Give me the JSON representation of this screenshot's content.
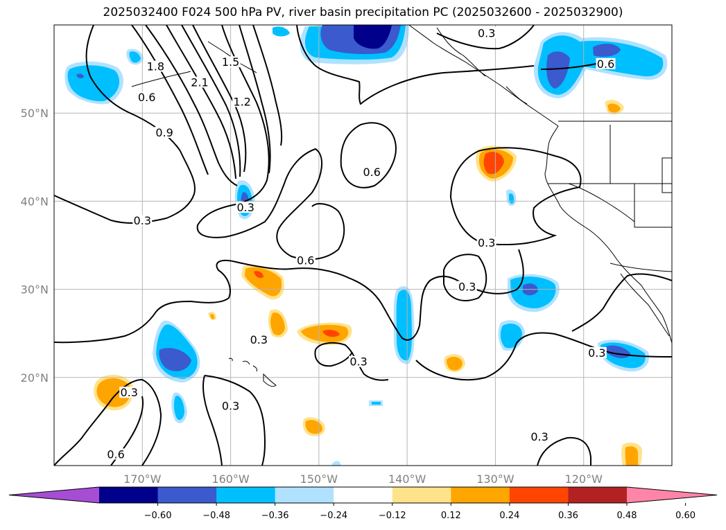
{
  "title": "2025032400 F024 500 hPa PV, river basin precipitation PC (2025032600 - 2025032900)",
  "map": {
    "projection": "lat-lon",
    "extent": {
      "lon_min": -180,
      "lon_max": -110,
      "lat_min": 10,
      "lat_max": 60
    },
    "gridlines": true,
    "lat_labels": [
      {
        "lat": 50,
        "text": "50°N"
      },
      {
        "lat": 40,
        "text": "40°N"
      },
      {
        "lat": 30,
        "text": "30°N"
      },
      {
        "lat": 20,
        "text": "20°N"
      }
    ],
    "lon_labels": [
      {
        "lon": -170,
        "text": "170°W"
      },
      {
        "lon": -160,
        "text": "160°W"
      },
      {
        "lon": -150,
        "text": "150°W"
      },
      {
        "lon": -140,
        "text": "140°W"
      },
      {
        "lon": -130,
        "text": "130°W"
      },
      {
        "lon": -120,
        "text": "120°W"
      }
    ],
    "contour_labels": [
      {
        "text": "0.3",
        "lon": -170,
        "lat": 37.5
      },
      {
        "text": "0.6",
        "lon": -151.5,
        "lat": 33.0
      },
      {
        "text": "0.6",
        "lon": -144.0,
        "lat": 43.0
      },
      {
        "text": "0.3",
        "lon": -131.0,
        "lat": 35.0
      },
      {
        "text": "0.3",
        "lon": -133.2,
        "lat": 30.0
      },
      {
        "text": "0.3",
        "lon": -118.5,
        "lat": 22.5
      },
      {
        "text": "0.3",
        "lon": -171.5,
        "lat": 18.0
      },
      {
        "text": "0.6",
        "lon": -173.0,
        "lat": 11.0
      },
      {
        "text": "0.3",
        "lon": -156.8,
        "lat": 24.0
      },
      {
        "text": "0.3",
        "lon": -160.0,
        "lat": 16.5
      },
      {
        "text": "0.3",
        "lon": -145.5,
        "lat": 21.5
      },
      {
        "text": "0.3",
        "lon": -125.0,
        "lat": 13.0
      },
      {
        "text": "0.3",
        "lon": -131.0,
        "lat": 58.8
      },
      {
        "text": "0.6",
        "lon": -117.5,
        "lat": 55.3
      },
      {
        "text": "0.3",
        "lon": -158.3,
        "lat": 39.0
      },
      {
        "text": "0.6",
        "lon": -169.5,
        "lat": 51.5
      },
      {
        "text": "0.9",
        "lon": -167.5,
        "lat": 47.5
      },
      {
        "text": "1.2",
        "lon": -158.7,
        "lat": 51.0
      },
      {
        "text": "2.1",
        "lon": -163.5,
        "lat": 53.2
      },
      {
        "text": "1.8",
        "lon": -168.5,
        "lat": 55.0
      },
      {
        "text": "1.5",
        "lon": -160.0,
        "lat": 55.5
      }
    ]
  },
  "colorbar": {
    "colors": [
      "#a54ed4",
      "#00008b",
      "#3a5acd",
      "#00bfff",
      "#b0e2ff",
      "#ffffff",
      "#ffe38a",
      "#ffa500",
      "#ff4500",
      "#b22222",
      "#ff85a8"
    ],
    "extend": "both",
    "tick_labels": [
      "−0.60",
      "−0.48",
      "−0.36",
      "−0.24",
      "−0.12",
      "0.12",
      "0.24",
      "0.36",
      "0.48",
      "0.60"
    ]
  }
}
